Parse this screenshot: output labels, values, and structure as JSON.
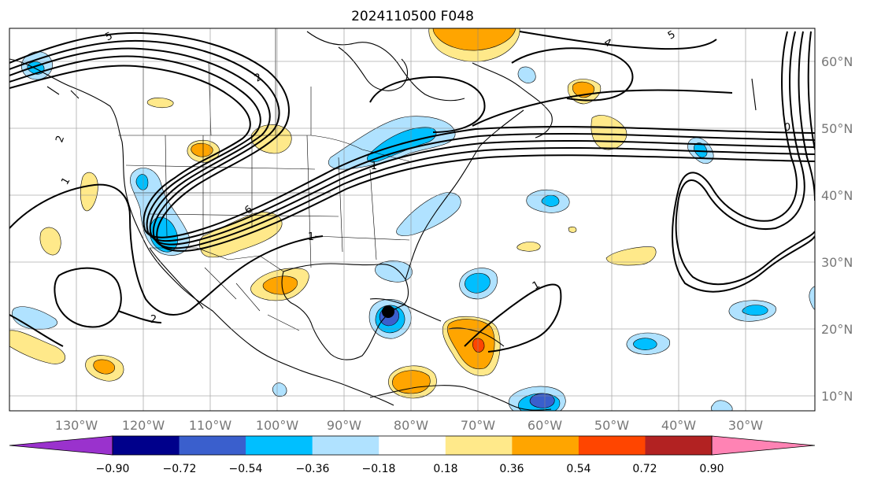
{
  "title": "2024110500 F048",
  "lon_labels": [
    "130°W",
    "120°W",
    "110°W",
    "100°W",
    "90°W",
    "80°W",
    "70°W",
    "60°W",
    "50°W",
    "40°W",
    "30°W"
  ],
  "lat_labels": [
    "60°N",
    "50°N",
    "40°N",
    "30°N",
    "20°N",
    "10°N"
  ],
  "colorbar": {
    "ticks": [
      "−0.90",
      "−0.72",
      "−0.54",
      "−0.36",
      "−0.18",
      "0.18",
      "0.36",
      "0.54",
      "0.72",
      "0.90"
    ],
    "colors": [
      "#9a32cd",
      "#00008b",
      "#3a5fcd",
      "#00bfff",
      "#b0e2ff",
      "#ffffff",
      "#ffe98a",
      "#ffa500",
      "#ff4500",
      "#b22222",
      "#ff83b4"
    ]
  },
  "contour_labels": [
    "5",
    "2",
    "1",
    "6",
    "2",
    "1",
    "2",
    "1",
    "1",
    "4",
    "5",
    "0"
  ],
  "colors": {
    "anomaly_neg_light": "#b0e2ff",
    "anomaly_neg": "#00bfff",
    "anomaly_neg_strong": "#3a5fcd",
    "anomaly_neg_extreme": "#00008b",
    "anomaly_pos_light": "#ffe98a",
    "anomaly_pos": "#ffa500",
    "anomaly_pos_strong": "#ff4500"
  }
}
